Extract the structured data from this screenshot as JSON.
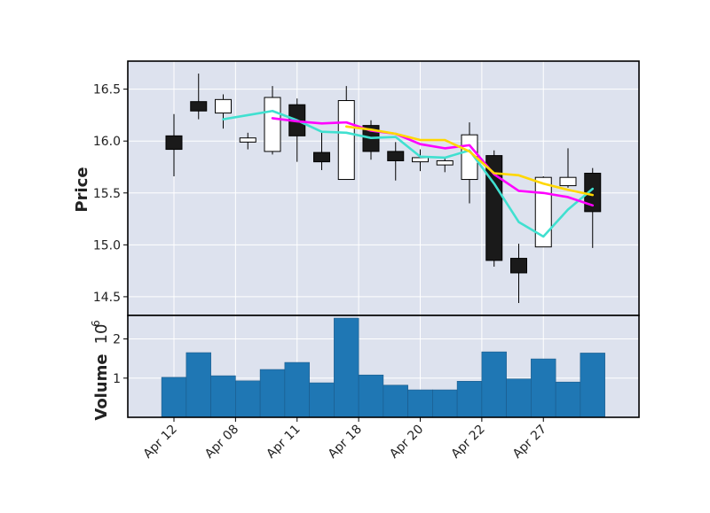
{
  "chart_data": {
    "type": "candlestick",
    "ylabel_price": "Price",
    "ylabel_volume": "Volume",
    "volume_exponent_base": "10",
    "volume_exponent_power": "6",
    "price_ylim": [
      14.32,
      16.77
    ],
    "price_yticks": [
      "14.5",
      "15.0",
      "15.5",
      "16.0",
      "16.5"
    ],
    "volume_ylim": [
      0,
      2.6
    ],
    "volume_yticks": [
      "1",
      "2"
    ],
    "x_tick_labels": [
      {
        "index": 0,
        "label": "Apr 12"
      },
      {
        "index": 2.5,
        "label": "Apr 08"
      },
      {
        "index": 5,
        "label": "Apr 11"
      },
      {
        "index": 7.5,
        "label": "Apr 18"
      },
      {
        "index": 10,
        "label": "Apr 20"
      },
      {
        "index": 12.5,
        "label": "Apr 22"
      },
      {
        "index": 15,
        "label": "Apr 27"
      }
    ],
    "candles": [
      {
        "open": 16.05,
        "high": 16.26,
        "low": 15.66,
        "close": 15.92
      },
      {
        "open": 16.38,
        "high": 16.65,
        "low": 16.21,
        "close": 16.29
      },
      {
        "open": 16.27,
        "high": 16.45,
        "low": 16.12,
        "close": 16.4
      },
      {
        "open": 15.99,
        "high": 16.08,
        "low": 15.92,
        "close": 16.03
      },
      {
        "open": 15.9,
        "high": 16.53,
        "low": 15.87,
        "close": 16.42
      },
      {
        "open": 16.35,
        "high": 16.41,
        "low": 15.8,
        "close": 16.05
      },
      {
        "open": 15.89,
        "high": 16.08,
        "low": 15.72,
        "close": 15.8
      },
      {
        "open": 15.63,
        "high": 16.53,
        "low": 15.63,
        "close": 16.39
      },
      {
        "open": 16.15,
        "high": 16.2,
        "low": 15.82,
        "close": 15.9
      },
      {
        "open": 15.9,
        "high": 15.99,
        "low": 15.62,
        "close": 15.81
      },
      {
        "open": 15.8,
        "high": 15.92,
        "low": 15.71,
        "close": 15.84
      },
      {
        "open": 15.77,
        "high": 15.84,
        "low": 15.7,
        "close": 15.81
      },
      {
        "open": 15.63,
        "high": 16.18,
        "low": 15.4,
        "close": 16.06
      },
      {
        "open": 15.86,
        "high": 15.91,
        "low": 14.79,
        "close": 14.85
      },
      {
        "open": 14.87,
        "high": 15.01,
        "low": 14.44,
        "close": 14.73
      },
      {
        "open": 14.98,
        "high": 15.66,
        "low": 14.98,
        "close": 15.65
      },
      {
        "open": 15.57,
        "high": 15.93,
        "low": 15.55,
        "close": 15.65
      },
      {
        "open": 15.69,
        "high": 15.74,
        "low": 14.97,
        "close": 15.32
      }
    ],
    "volume": [
      1.02,
      1.65,
      1.06,
      0.93,
      1.22,
      1.4,
      0.88,
      2.53,
      1.08,
      0.82,
      0.7,
      0.7,
      0.92,
      1.67,
      0.98,
      1.49,
      0.9,
      1.64
    ],
    "moving_averages": [
      {
        "color": "#40e0d0",
        "values": [
          null,
          null,
          16.21,
          16.25,
          16.29,
          16.2,
          16.09,
          16.08,
          16.03,
          16.04,
          15.85,
          15.84,
          15.91,
          15.59,
          15.22,
          15.08,
          15.34,
          15.54
        ]
      },
      {
        "color": "#ff00ff",
        "values": [
          null,
          null,
          null,
          null,
          16.22,
          16.19,
          16.17,
          16.18,
          16.1,
          16.07,
          15.97,
          15.93,
          15.96,
          15.68,
          15.52,
          15.5,
          15.46,
          15.38
        ]
      },
      {
        "color": "#ffd700",
        "values": [
          null,
          null,
          null,
          null,
          null,
          null,
          null,
          16.14,
          16.11,
          16.07,
          16.01,
          16.01,
          15.9,
          15.69,
          15.67,
          15.59,
          15.53,
          15.48
        ]
      }
    ],
    "up_color": "#ffffff",
    "down_color": "#1a1a1a",
    "volume_color": "#1f77b4",
    "panel_background": "#dde2ee",
    "grid": true
  }
}
